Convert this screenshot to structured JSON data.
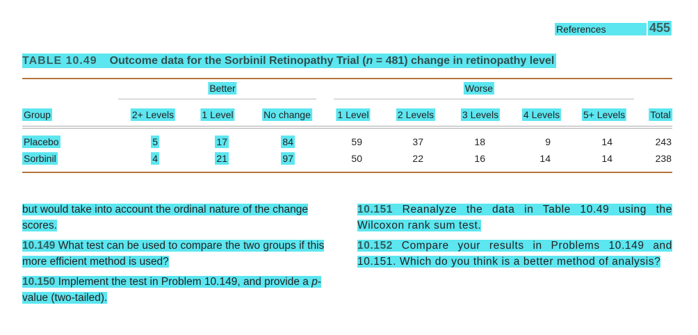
{
  "header": {
    "section": "References",
    "page": "455"
  },
  "table": {
    "label": "TABLE 10.49",
    "title_before": "Outcome data for the Sorbinil Retinopathy Trial (",
    "title_var": "n",
    "title_after": " = 481) change in retinopathy level",
    "groups": [
      "Better",
      "Worse"
    ],
    "columns": [
      "Group",
      "2+ Levels",
      "1 Level",
      "No change",
      "1 Level",
      "2 Levels",
      "3 Levels",
      "4 Levels",
      "5+ Levels",
      "Total"
    ],
    "rows": [
      [
        "Placebo",
        5,
        17,
        84,
        59,
        37,
        18,
        9,
        14,
        243
      ],
      [
        "Sorbinil",
        4,
        21,
        97,
        50,
        22,
        16,
        14,
        14,
        238
      ]
    ]
  },
  "left": {
    "p1": "but would take into account the ordinal nature of the change scores.",
    "q149": {
      "num": "10.149",
      "text": "What test can be used to compare the two groups if this more efficient method is used?"
    },
    "q150": {
      "num": "10.150",
      "text": "Implement the test in Problem 10.149, and provide a ",
      "var": "p",
      "after": "-value (two-tailed)."
    }
  },
  "right": {
    "q151": {
      "num": "10.151",
      "text": "Reanalyze the data in Table 10.49 using the Wilcoxon rank sum test."
    },
    "q152": {
      "num": "10.152",
      "text": "Compare your results in Problems 10.149 and 10.151. Which do you think is a better method of analysis?"
    }
  }
}
